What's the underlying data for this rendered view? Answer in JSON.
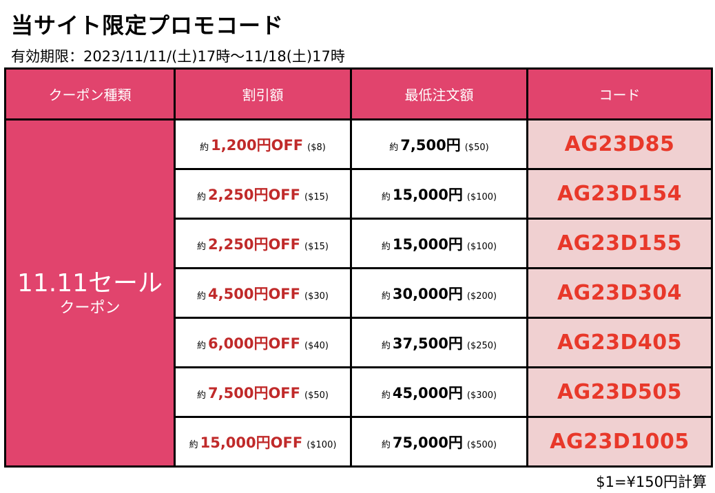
{
  "title": "当サイト限定プロモコード",
  "validity": "有効期限：2023/11/11/(土)17時〜11/18(土)17時",
  "table": {
    "headers": [
      "クーポン種類",
      "割引額",
      "最低注文額",
      "コード"
    ],
    "campaign_name": "11.11セール",
    "campaign_sub": "クーポン",
    "rows": [
      {
        "off_approx": "約",
        "off_value": "1,200円OFF",
        "off_usd": "($8)",
        "min_approx": "約",
        "min_value": "7,500円",
        "min_usd": "($50)",
        "code": "AG23D85"
      },
      {
        "off_approx": "約",
        "off_value": "2,250円OFF",
        "off_usd": "($15)",
        "min_approx": "約",
        "min_value": "15,000円",
        "min_usd": "($100)",
        "code": "AG23D154"
      },
      {
        "off_approx": "約",
        "off_value": "2,250円OFF",
        "off_usd": "($15)",
        "min_approx": "約",
        "min_value": "15,000円",
        "min_usd": "($100)",
        "code": "AG23D155"
      },
      {
        "off_approx": "約",
        "off_value": "4,500円OFF",
        "off_usd": "($30)",
        "min_approx": "約",
        "min_value": "30,000円",
        "min_usd": "($200)",
        "code": "AG23D304"
      },
      {
        "off_approx": "約",
        "off_value": "6,000円OFF",
        "off_usd": "($40)",
        "min_approx": "約",
        "min_value": "37,500円",
        "min_usd": "($250)",
        "code": "AG23D405"
      },
      {
        "off_approx": "約",
        "off_value": "7,500円OFF",
        "off_usd": "($50)",
        "min_approx": "約",
        "min_value": "45,000円",
        "min_usd": "($300)",
        "code": "AG23D505"
      },
      {
        "off_approx": "約",
        "off_value": "15,000円OFF",
        "off_usd": "($100)",
        "min_approx": "約",
        "min_value": "75,000円",
        "min_usd": "($500)",
        "code": "AG23D1005"
      }
    ]
  },
  "footnote": "$1=¥150円計算",
  "colors": {
    "header_bg": "#e1446d",
    "code_bg": "#f0d0d1",
    "code_text": "#e8382a",
    "discount_text": "#c02a2a",
    "border": "#000000"
  }
}
